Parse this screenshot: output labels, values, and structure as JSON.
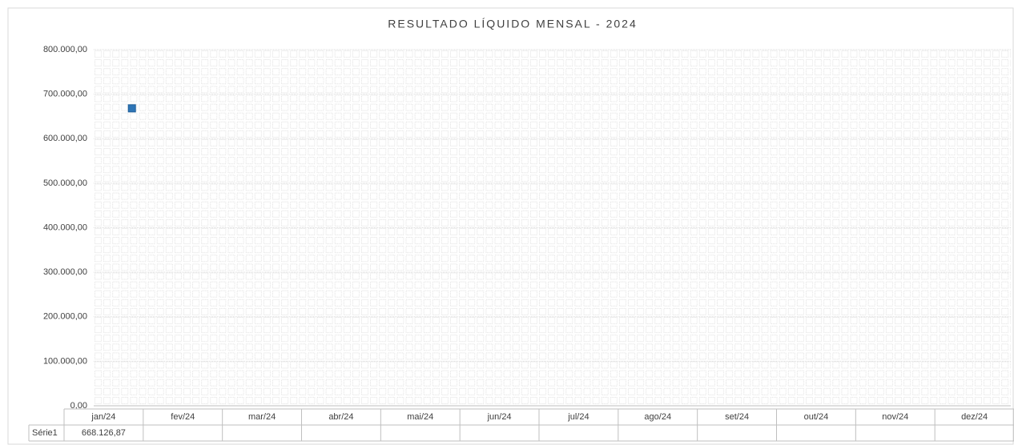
{
  "chart_data": {
    "type": "line",
    "title": "RESULTADO LÍQUIDO MENSAL - 2024",
    "categories": [
      "jan/24",
      "fev/24",
      "mar/24",
      "abr/24",
      "mai/24",
      "jun/24",
      "jul/24",
      "ago/24",
      "set/24",
      "out/24",
      "nov/24",
      "dez/24"
    ],
    "series": [
      {
        "name": "Série1",
        "color": "#2e75b6",
        "values": [
          668126.87,
          null,
          null,
          null,
          null,
          null,
          null,
          null,
          null,
          null,
          null,
          null
        ],
        "value_labels": [
          "668.126,87",
          null,
          null,
          null,
          null,
          null,
          null,
          null,
          null,
          null,
          null,
          null
        ]
      }
    ],
    "ylim": [
      0,
      800000
    ],
    "yticks": [
      {
        "value": 0,
        "label": "0,00"
      },
      {
        "value": 100000,
        "label": "100.000,00"
      },
      {
        "value": 200000,
        "label": "200.000,00"
      },
      {
        "value": 300000,
        "label": "300.000,00"
      },
      {
        "value": 400000,
        "label": "400.000,00"
      },
      {
        "value": 500000,
        "label": "500.000,00"
      },
      {
        "value": 600000,
        "label": "600.000,00"
      },
      {
        "value": 700000,
        "label": "700.000,00"
      },
      {
        "value": 800000,
        "label": "800.000,00"
      }
    ],
    "grid": true,
    "data_table": true
  }
}
